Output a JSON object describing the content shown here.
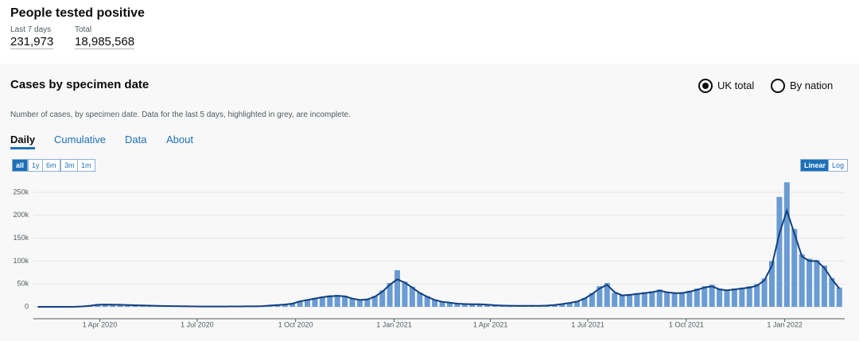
{
  "header": {
    "title": "People tested positive",
    "last7_label": "Last 7 days",
    "last7_value": "231,973",
    "total_label": "Total",
    "total_value": "18,985,568"
  },
  "panel": {
    "title": "Cases by specimen date",
    "radios": [
      "UK total",
      "By nation"
    ],
    "description": "Number of cases, by specimen date. Data for the last 5 days, highlighted in grey, are incomplete.",
    "tabs": [
      "Daily",
      "Cumulative",
      "Data",
      "About"
    ],
    "ranges": [
      "all",
      "1y",
      "6m",
      "3m",
      "1m"
    ],
    "scales": [
      "Linear",
      "Log"
    ]
  },
  "chart_data": {
    "type": "bar",
    "grid": true,
    "x": [
      "2020-02-03",
      "2020-02-10",
      "2020-02-17",
      "2020-02-24",
      "2020-03-02",
      "2020-03-09",
      "2020-03-16",
      "2020-03-23",
      "2020-03-30",
      "2020-04-06",
      "2020-04-13",
      "2020-04-20",
      "2020-04-27",
      "2020-05-04",
      "2020-05-11",
      "2020-05-18",
      "2020-05-25",
      "2020-06-01",
      "2020-06-08",
      "2020-06-15",
      "2020-06-22",
      "2020-06-29",
      "2020-07-06",
      "2020-07-13",
      "2020-07-20",
      "2020-07-27",
      "2020-08-03",
      "2020-08-10",
      "2020-08-17",
      "2020-08-24",
      "2020-08-31",
      "2020-09-07",
      "2020-09-14",
      "2020-09-21",
      "2020-09-28",
      "2020-10-05",
      "2020-10-12",
      "2020-10-19",
      "2020-10-26",
      "2020-11-02",
      "2020-11-09",
      "2020-11-16",
      "2020-11-23",
      "2020-11-30",
      "2020-12-07",
      "2020-12-14",
      "2020-12-21",
      "2020-12-28",
      "2021-01-04",
      "2021-01-11",
      "2021-01-18",
      "2021-01-25",
      "2021-02-01",
      "2021-02-08",
      "2021-02-15",
      "2021-02-22",
      "2021-03-01",
      "2021-03-08",
      "2021-03-15",
      "2021-03-22",
      "2021-03-29",
      "2021-04-05",
      "2021-04-12",
      "2021-04-19",
      "2021-04-26",
      "2021-05-03",
      "2021-05-10",
      "2021-05-17",
      "2021-05-24",
      "2021-05-31",
      "2021-06-07",
      "2021-06-14",
      "2021-06-21",
      "2021-06-28",
      "2021-07-05",
      "2021-07-12",
      "2021-07-19",
      "2021-07-26",
      "2021-08-02",
      "2021-08-09",
      "2021-08-16",
      "2021-08-23",
      "2021-08-30",
      "2021-09-06",
      "2021-09-13",
      "2021-09-20",
      "2021-09-27",
      "2021-10-04",
      "2021-10-11",
      "2021-10-18",
      "2021-10-25",
      "2021-11-01",
      "2021-11-08",
      "2021-11-15",
      "2021-11-22",
      "2021-11-29",
      "2021-12-06",
      "2021-12-13",
      "2021-12-20",
      "2021-12-27",
      "2022-01-03",
      "2022-01-10",
      "2022-01-17",
      "2022-01-24",
      "2022-01-31",
      "2022-02-07",
      "2022-02-14",
      "2022-02-21"
    ],
    "series": [
      {
        "color": "#6a9bd3",
        "values": [
          0,
          0,
          0,
          20,
          80,
          300,
          1100,
          3200,
          5500,
          5200,
          4700,
          4600,
          3800,
          3600,
          2900,
          2700,
          2000,
          1900,
          1400,
          1300,
          1000,
          850,
          750,
          600,
          700,
          800,
          900,
          1000,
          1050,
          1200,
          1700,
          3100,
          4200,
          5600,
          7500,
          13000,
          16500,
          19500,
          22000,
          25000,
          26000,
          24000,
          19000,
          16500,
          17500,
          24000,
          36000,
          52000,
          80000,
          55000,
          44000,
          31000,
          23000,
          16000,
          12000,
          9500,
          7500,
          6500,
          5800,
          5600,
          4500,
          3700,
          3000,
          2600,
          2400,
          2300,
          2200,
          2400,
          3000,
          4100,
          6500,
          9000,
          12500,
          19500,
          30000,
          45000,
          52000,
          30000,
          27000,
          28000,
          30000,
          32000,
          34000,
          38000,
          33000,
          31000,
          32000,
          35000,
          40000,
          45000,
          48000,
          40000,
          37000,
          40000,
          42000,
          45000,
          50000,
          62000,
          100000,
          240000,
          272000,
          170000,
          115000,
          105000,
          102000,
          90000,
          63000,
          42000
        ]
      },
      {
        "color": "#12407f",
        "values": [
          0,
          0,
          0,
          10,
          50,
          200,
          800,
          2500,
          4500,
          5000,
          4800,
          4500,
          4000,
          3500,
          3000,
          2600,
          2200,
          1800,
          1500,
          1200,
          1000,
          900,
          700,
          650,
          650,
          750,
          850,
          950,
          1000,
          1100,
          1500,
          2800,
          3800,
          5000,
          7000,
          12000,
          15000,
          18000,
          21000,
          23000,
          24000,
          23000,
          18000,
          15000,
          16000,
          22000,
          33000,
          48000,
          60000,
          53000,
          42000,
          30000,
          22000,
          15000,
          11000,
          9000,
          7000,
          6000,
          5500,
          5500,
          4800,
          3500,
          2800,
          2500,
          2300,
          2200,
          2100,
          2200,
          2800,
          3800,
          6000,
          8500,
          11500,
          18000,
          28000,
          40000,
          48000,
          32000,
          25000,
          26000,
          28000,
          30000,
          32000,
          35000,
          32000,
          30000,
          30000,
          33000,
          37000,
          42000,
          45000,
          38000,
          36000,
          38000,
          40000,
          42000,
          46000,
          58000,
          90000,
          160000,
          210000,
          160000,
          110000,
          100000,
          100000,
          85000,
          60000,
          40000
        ]
      }
    ],
    "xlim": [
      "2020-01-30",
      "2022-02-26"
    ],
    "xticks": [
      {
        "value": "2020-04-01",
        "label": "1 Apr 2020"
      },
      {
        "value": "2020-07-01",
        "label": "1 Jul 2020"
      },
      {
        "value": "2020-10-01",
        "label": "1 Oct 2020"
      },
      {
        "value": "2021-01-01",
        "label": "1 Jan 2021"
      },
      {
        "value": "2021-04-01",
        "label": "1 Apr 2021"
      },
      {
        "value": "2021-07-01",
        "label": "1 Jul 2021"
      },
      {
        "value": "2021-10-01",
        "label": "1 Oct 2021"
      },
      {
        "value": "2022-01-01",
        "label": "1 Jan 2022"
      }
    ],
    "ylim": [
      0,
      280000
    ],
    "yticks": [
      0,
      {
        "value": 50000,
        "label": "50k"
      },
      {
        "value": 100000,
        "label": "100k"
      },
      {
        "value": 150000,
        "label": "150k"
      },
      {
        "value": 200000,
        "label": "200k"
      },
      {
        "value": 250000,
        "label": "250k"
      }
    ]
  }
}
